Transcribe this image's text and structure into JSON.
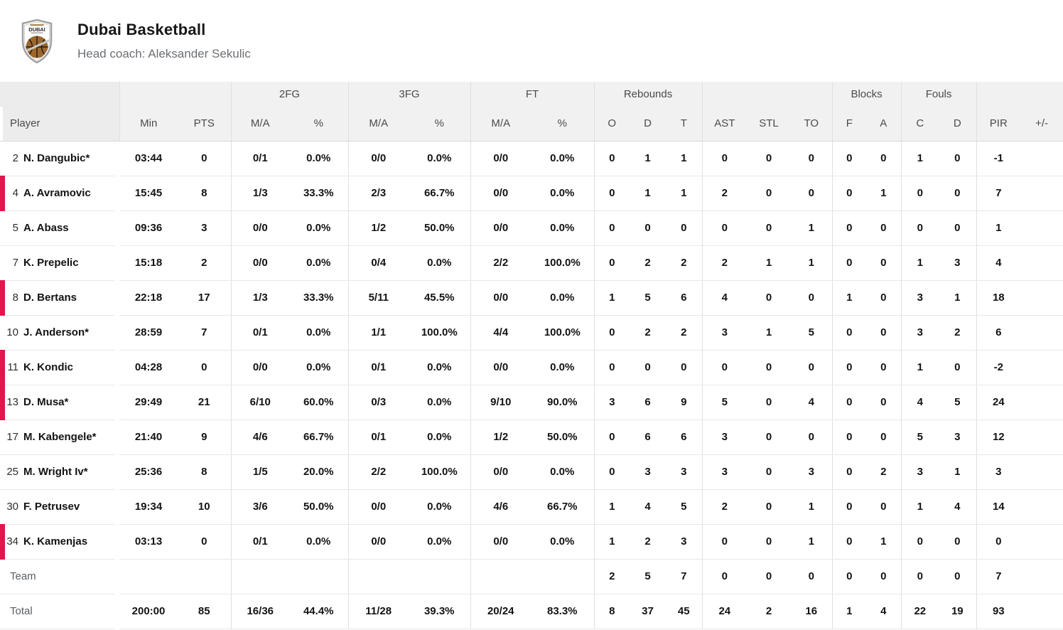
{
  "team": {
    "name": "Dubai Basketball",
    "coach": "Head coach: Aleksander Sekulic",
    "logo_text": "DUBAI"
  },
  "colors": {
    "accent": "#e0164c",
    "header_bg": "#f1f1f1",
    "ball_bronze": "#9c672f"
  },
  "table": {
    "groups": {
      "fg2": "2FG",
      "fg3": "3FG",
      "ft": "FT",
      "rebounds": "Rebounds",
      "blocks": "Blocks",
      "fouls": "Fouls"
    },
    "columns": {
      "player": "Player",
      "min": "Min",
      "pts": "PTS",
      "ma": "M/A",
      "pct": "%",
      "reb_o": "O",
      "reb_d": "D",
      "reb_t": "T",
      "ast": "AST",
      "stl": "STL",
      "to": "TO",
      "blk_f": "F",
      "blk_a": "A",
      "foul_c": "C",
      "foul_d": "D",
      "pir": "PIR",
      "plus_minus": "+/-"
    },
    "players": [
      {
        "number": "2",
        "name": "N. Dangubic*",
        "on_court": false,
        "min": "03:44",
        "pts": "0",
        "fg2_ma": "0/1",
        "fg2_pct": "0.0%",
        "fg3_ma": "0/0",
        "fg3_pct": "0.0%",
        "ft_ma": "0/0",
        "ft_pct": "0.0%",
        "reb_o": "0",
        "reb_d": "1",
        "reb_t": "1",
        "ast": "0",
        "stl": "0",
        "to": "0",
        "blk_f": "0",
        "blk_a": "0",
        "foul_c": "1",
        "foul_d": "0",
        "pir": "-1",
        "plus_minus": ""
      },
      {
        "number": "4",
        "name": "A. Avramovic",
        "on_court": true,
        "min": "15:45",
        "pts": "8",
        "fg2_ma": "1/3",
        "fg2_pct": "33.3%",
        "fg3_ma": "2/3",
        "fg3_pct": "66.7%",
        "ft_ma": "0/0",
        "ft_pct": "0.0%",
        "reb_o": "0",
        "reb_d": "1",
        "reb_t": "1",
        "ast": "2",
        "stl": "0",
        "to": "0",
        "blk_f": "0",
        "blk_a": "1",
        "foul_c": "0",
        "foul_d": "0",
        "pir": "7",
        "plus_minus": ""
      },
      {
        "number": "5",
        "name": "A. Abass",
        "on_court": false,
        "min": "09:36",
        "pts": "3",
        "fg2_ma": "0/0",
        "fg2_pct": "0.0%",
        "fg3_ma": "1/2",
        "fg3_pct": "50.0%",
        "ft_ma": "0/0",
        "ft_pct": "0.0%",
        "reb_o": "0",
        "reb_d": "0",
        "reb_t": "0",
        "ast": "0",
        "stl": "0",
        "to": "1",
        "blk_f": "0",
        "blk_a": "0",
        "foul_c": "0",
        "foul_d": "0",
        "pir": "1",
        "plus_minus": ""
      },
      {
        "number": "7",
        "name": "K. Prepelic",
        "on_court": false,
        "min": "15:18",
        "pts": "2",
        "fg2_ma": "0/0",
        "fg2_pct": "0.0%",
        "fg3_ma": "0/4",
        "fg3_pct": "0.0%",
        "ft_ma": "2/2",
        "ft_pct": "100.0%",
        "reb_o": "0",
        "reb_d": "2",
        "reb_t": "2",
        "ast": "2",
        "stl": "1",
        "to": "1",
        "blk_f": "0",
        "blk_a": "0",
        "foul_c": "1",
        "foul_d": "3",
        "pir": "4",
        "plus_minus": ""
      },
      {
        "number": "8",
        "name": "D. Bertans",
        "on_court": true,
        "min": "22:18",
        "pts": "17",
        "fg2_ma": "1/3",
        "fg2_pct": "33.3%",
        "fg3_ma": "5/11",
        "fg3_pct": "45.5%",
        "ft_ma": "0/0",
        "ft_pct": "0.0%",
        "reb_o": "1",
        "reb_d": "5",
        "reb_t": "6",
        "ast": "4",
        "stl": "0",
        "to": "0",
        "blk_f": "1",
        "blk_a": "0",
        "foul_c": "3",
        "foul_d": "1",
        "pir": "18",
        "plus_minus": ""
      },
      {
        "number": "10",
        "name": "J. Anderson*",
        "on_court": false,
        "min": "28:59",
        "pts": "7",
        "fg2_ma": "0/1",
        "fg2_pct": "0.0%",
        "fg3_ma": "1/1",
        "fg3_pct": "100.0%",
        "ft_ma": "4/4",
        "ft_pct": "100.0%",
        "reb_o": "0",
        "reb_d": "2",
        "reb_t": "2",
        "ast": "3",
        "stl": "1",
        "to": "5",
        "blk_f": "0",
        "blk_a": "0",
        "foul_c": "3",
        "foul_d": "2",
        "pir": "6",
        "plus_minus": ""
      },
      {
        "number": "11",
        "name": "K. Kondic",
        "on_court": true,
        "min": "04:28",
        "pts": "0",
        "fg2_ma": "0/0",
        "fg2_pct": "0.0%",
        "fg3_ma": "0/1",
        "fg3_pct": "0.0%",
        "ft_ma": "0/0",
        "ft_pct": "0.0%",
        "reb_o": "0",
        "reb_d": "0",
        "reb_t": "0",
        "ast": "0",
        "stl": "0",
        "to": "0",
        "blk_f": "0",
        "blk_a": "0",
        "foul_c": "1",
        "foul_d": "0",
        "pir": "-2",
        "plus_minus": ""
      },
      {
        "number": "13",
        "name": "D. Musa*",
        "on_court": true,
        "min": "29:49",
        "pts": "21",
        "fg2_ma": "6/10",
        "fg2_pct": "60.0%",
        "fg3_ma": "0/3",
        "fg3_pct": "0.0%",
        "ft_ma": "9/10",
        "ft_pct": "90.0%",
        "reb_o": "3",
        "reb_d": "6",
        "reb_t": "9",
        "ast": "5",
        "stl": "0",
        "to": "4",
        "blk_f": "0",
        "blk_a": "0",
        "foul_c": "4",
        "foul_d": "5",
        "pir": "24",
        "plus_minus": ""
      },
      {
        "number": "17",
        "name": "M. Kabengele*",
        "on_court": false,
        "min": "21:40",
        "pts": "9",
        "fg2_ma": "4/6",
        "fg2_pct": "66.7%",
        "fg3_ma": "0/1",
        "fg3_pct": "0.0%",
        "ft_ma": "1/2",
        "ft_pct": "50.0%",
        "reb_o": "0",
        "reb_d": "6",
        "reb_t": "6",
        "ast": "3",
        "stl": "0",
        "to": "0",
        "blk_f": "0",
        "blk_a": "0",
        "foul_c": "5",
        "foul_d": "3",
        "pir": "12",
        "plus_minus": ""
      },
      {
        "number": "25",
        "name": "M. Wright Iv*",
        "on_court": false,
        "min": "25:36",
        "pts": "8",
        "fg2_ma": "1/5",
        "fg2_pct": "20.0%",
        "fg3_ma": "2/2",
        "fg3_pct": "100.0%",
        "ft_ma": "0/0",
        "ft_pct": "0.0%",
        "reb_o": "0",
        "reb_d": "3",
        "reb_t": "3",
        "ast": "3",
        "stl": "0",
        "to": "3",
        "blk_f": "0",
        "blk_a": "2",
        "foul_c": "3",
        "foul_d": "1",
        "pir": "3",
        "plus_minus": ""
      },
      {
        "number": "30",
        "name": "F. Petrusev",
        "on_court": false,
        "min": "19:34",
        "pts": "10",
        "fg2_ma": "3/6",
        "fg2_pct": "50.0%",
        "fg3_ma": "0/0",
        "fg3_pct": "0.0%",
        "ft_ma": "4/6",
        "ft_pct": "66.7%",
        "reb_o": "1",
        "reb_d": "4",
        "reb_t": "5",
        "ast": "2",
        "stl": "0",
        "to": "1",
        "blk_f": "0",
        "blk_a": "0",
        "foul_c": "1",
        "foul_d": "4",
        "pir": "14",
        "plus_minus": ""
      },
      {
        "number": "34",
        "name": "K. Kamenjas",
        "on_court": true,
        "min": "03:13",
        "pts": "0",
        "fg2_ma": "0/1",
        "fg2_pct": "0.0%",
        "fg3_ma": "0/0",
        "fg3_pct": "0.0%",
        "ft_ma": "0/0",
        "ft_pct": "0.0%",
        "reb_o": "1",
        "reb_d": "2",
        "reb_t": "3",
        "ast": "0",
        "stl": "0",
        "to": "1",
        "blk_f": "0",
        "blk_a": "1",
        "foul_c": "0",
        "foul_d": "0",
        "pir": "0",
        "plus_minus": ""
      }
    ],
    "team_row": {
      "label": "Team",
      "min": "",
      "pts": "",
      "fg2_ma": "",
      "fg2_pct": "",
      "fg3_ma": "",
      "fg3_pct": "",
      "ft_ma": "",
      "ft_pct": "",
      "reb_o": "2",
      "reb_d": "5",
      "reb_t": "7",
      "ast": "0",
      "stl": "0",
      "to": "0",
      "blk_f": "0",
      "blk_a": "0",
      "foul_c": "0",
      "foul_d": "0",
      "pir": "7",
      "plus_minus": ""
    },
    "total_row": {
      "label": "Total",
      "min": "200:00",
      "pts": "85",
      "fg2_ma": "16/36",
      "fg2_pct": "44.4%",
      "fg3_ma": "11/28",
      "fg3_pct": "39.3%",
      "ft_ma": "20/24",
      "ft_pct": "83.3%",
      "reb_o": "8",
      "reb_d": "37",
      "reb_t": "45",
      "ast": "24",
      "stl": "2",
      "to": "16",
      "blk_f": "1",
      "blk_a": "4",
      "foul_c": "22",
      "foul_d": "19",
      "pir": "93",
      "plus_minus": ""
    }
  }
}
